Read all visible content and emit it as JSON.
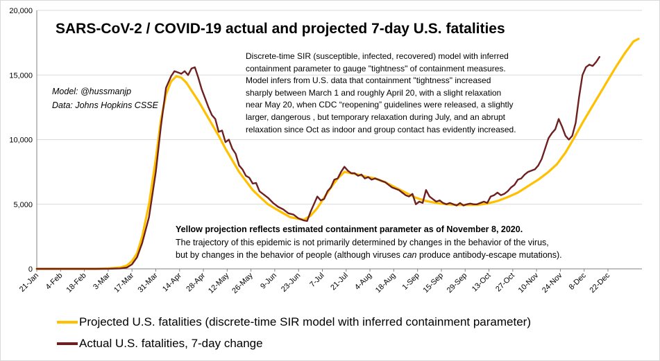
{
  "colors": {
    "projected": "#ffc000",
    "actual": "#6e2020",
    "gridline": "#d9d9d9"
  },
  "texts": {
    "title": "SARS-CoV-2  / COVID-19 actual and projected 7-day U.S. fatalities",
    "author_line1": "Model: @hussmanjp",
    "author_line2": "Data: Johns Hopkins CSSE",
    "model_description": [
      "Discrete-time SIR (susceptible, infected, recovered) model with inferred",
      "containment parameter to gauge \"tightness\" of containment measures.",
      "Model infers from U.S. data that containment  \"tightness\" increased",
      "sharply between March 1 and roughly April 20, with a slight relaxation",
      "near May 20, when CDC “reopening” guidelines were released, a slightly",
      "larger, dangerous , but temporary relaxation during July, and an abrupt",
      "relaxation since Oct as indoor and group contact has evidently increased."
    ],
    "projection_note": "Yellow  projection reflects estimated containment parameter as of November 8, 2020.",
    "trajectory_line1": "The trajectory of this epidemic is not primarily determined by changes in the behavior of the virus,",
    "trajectory_line2_a": "but by changes in the behavior of people (although viruses ",
    "trajectory_line2_em": "can",
    "trajectory_line2_b": " produce  antibody-escape mutations)."
  },
  "chart_data": {
    "type": "line",
    "title": "SARS-CoV-2  / COVID-19 actual and projected 7-day U.S. fatalities",
    "xlabel": "",
    "ylabel": "",
    "x_ticks": [
      "21-Jan",
      "4-Feb",
      "18-Feb",
      "3-Mar",
      "17-Mar",
      "31-Mar",
      "14-Apr",
      "28-Apr",
      "12-May",
      "26-May",
      "9-Jun",
      "23-Jun",
      "7-Jul",
      "21-Jul",
      "4-Aug",
      "18-Aug",
      "1-Sep",
      "15-Sep",
      "29-Sep",
      "13-Oct",
      "27-Oct",
      "10-Nov",
      "24-Nov",
      "8-Dec",
      "22-Dec"
    ],
    "y_ticks": [
      "0",
      "5,000",
      "10,000",
      "15,000",
      "20,000"
    ],
    "ylim": [
      0,
      20000
    ],
    "x_unit": "days since 21-Jan",
    "xlim": [
      0,
      356
    ],
    "grid": "horizontal",
    "legend_position": "bottom",
    "series": [
      {
        "name": "Projected U.S. fatalities (discrete-time SIR model with inferred containment parameter)",
        "color": "#ffc000",
        "points": [
          [
            0,
            0
          ],
          [
            35,
            0
          ],
          [
            42,
            30
          ],
          [
            49,
            100
          ],
          [
            53,
            250
          ],
          [
            56,
            600
          ],
          [
            59,
            1200
          ],
          [
            62,
            2500
          ],
          [
            66,
            5000
          ],
          [
            70,
            8500
          ],
          [
            73,
            11500
          ],
          [
            76,
            13500
          ],
          [
            79,
            14500
          ],
          [
            82,
            14900
          ],
          [
            85,
            14800
          ],
          [
            88,
            14400
          ],
          [
            91,
            13800
          ],
          [
            95,
            13000
          ],
          [
            99,
            12100
          ],
          [
            103,
            11200
          ],
          [
            107,
            10300
          ],
          [
            111,
            9300
          ],
          [
            115,
            8400
          ],
          [
            119,
            7500
          ],
          [
            123,
            6800
          ],
          [
            127,
            6100
          ],
          [
            131,
            5600
          ],
          [
            136,
            5000
          ],
          [
            141,
            4600
          ],
          [
            145,
            4300
          ],
          [
            149,
            4000
          ],
          [
            153,
            3900
          ],
          [
            157,
            3800
          ],
          [
            161,
            4100
          ],
          [
            165,
            4700
          ],
          [
            169,
            5500
          ],
          [
            173,
            6300
          ],
          [
            177,
            7000
          ],
          [
            181,
            7500
          ],
          [
            185,
            7400
          ],
          [
            189,
            7300
          ],
          [
            193,
            7150
          ],
          [
            199,
            7000
          ],
          [
            205,
            6700
          ],
          [
            211,
            6300
          ],
          [
            217,
            5900
          ],
          [
            223,
            5500
          ],
          [
            229,
            5250
          ],
          [
            235,
            5100
          ],
          [
            241,
            5000
          ],
          [
            247,
            4950
          ],
          [
            253,
            4950
          ],
          [
            259,
            4950
          ],
          [
            265,
            5050
          ],
          [
            271,
            5250
          ],
          [
            277,
            5550
          ],
          [
            283,
            5900
          ],
          [
            289,
            6400
          ],
          [
            295,
            6900
          ],
          [
            301,
            7500
          ],
          [
            306,
            8100
          ],
          [
            311,
            9000
          ],
          [
            316,
            10100
          ],
          [
            321,
            11300
          ],
          [
            326,
            12400
          ],
          [
            331,
            13500
          ],
          [
            336,
            14600
          ],
          [
            341,
            15700
          ],
          [
            346,
            16700
          ],
          [
            351,
            17600
          ],
          [
            354,
            17800
          ]
        ]
      },
      {
        "name": "Actual U.S. fatalities, 7-day change",
        "color": "#6e2020",
        "points": [
          [
            0,
            0
          ],
          [
            35,
            0
          ],
          [
            42,
            5
          ],
          [
            49,
            30
          ],
          [
            53,
            100
          ],
          [
            56,
            350
          ],
          [
            59,
            900
          ],
          [
            62,
            2000
          ],
          [
            66,
            4000
          ],
          [
            70,
            7500
          ],
          [
            73,
            11000
          ],
          [
            76,
            14000
          ],
          [
            79,
            14900
          ],
          [
            81,
            15300
          ],
          [
            83,
            15200
          ],
          [
            85,
            15100
          ],
          [
            87,
            15300
          ],
          [
            89,
            15000
          ],
          [
            91,
            15500
          ],
          [
            93,
            15600
          ],
          [
            95,
            14800
          ],
          [
            97,
            13900
          ],
          [
            99,
            13200
          ],
          [
            101,
            12500
          ],
          [
            103,
            11900
          ],
          [
            105,
            11600
          ],
          [
            107,
            10600
          ],
          [
            109,
            10700
          ],
          [
            111,
            9800
          ],
          [
            113,
            10000
          ],
          [
            115,
            9300
          ],
          [
            117,
            8900
          ],
          [
            119,
            8000
          ],
          [
            121,
            7700
          ],
          [
            123,
            7200
          ],
          [
            125,
            7050
          ],
          [
            127,
            6600
          ],
          [
            129,
            6650
          ],
          [
            131,
            6000
          ],
          [
            133,
            5800
          ],
          [
            136,
            5500
          ],
          [
            139,
            5100
          ],
          [
            142,
            4800
          ],
          [
            145,
            4600
          ],
          [
            148,
            4300
          ],
          [
            151,
            4200
          ],
          [
            154,
            3900
          ],
          [
            157,
            3750
          ],
          [
            159,
            3700
          ],
          [
            161,
            4400
          ],
          [
            163,
            5000
          ],
          [
            165,
            5600
          ],
          [
            167,
            5300
          ],
          [
            169,
            5400
          ],
          [
            171,
            6000
          ],
          [
            173,
            6300
          ],
          [
            175,
            6900
          ],
          [
            177,
            7000
          ],
          [
            179,
            7500
          ],
          [
            181,
            7900
          ],
          [
            183,
            7600
          ],
          [
            185,
            7400
          ],
          [
            187,
            7400
          ],
          [
            189,
            7200
          ],
          [
            191,
            7300
          ],
          [
            193,
            7000
          ],
          [
            195,
            7100
          ],
          [
            197,
            6900
          ],
          [
            199,
            7000
          ],
          [
            201,
            6900
          ],
          [
            203,
            6800
          ],
          [
            205,
            6700
          ],
          [
            207,
            6500
          ],
          [
            209,
            6300
          ],
          [
            211,
            6200
          ],
          [
            213,
            6100
          ],
          [
            215,
            5900
          ],
          [
            217,
            5700
          ],
          [
            219,
            5600
          ],
          [
            221,
            5800
          ],
          [
            223,
            5000
          ],
          [
            225,
            5200
          ],
          [
            227,
            5100
          ],
          [
            229,
            6100
          ],
          [
            231,
            5600
          ],
          [
            233,
            5400
          ],
          [
            235,
            5200
          ],
          [
            237,
            5300
          ],
          [
            239,
            5100
          ],
          [
            241,
            5000
          ],
          [
            243,
            5100
          ],
          [
            245,
            5000
          ],
          [
            247,
            4900
          ],
          [
            249,
            5100
          ],
          [
            251,
            4900
          ],
          [
            253,
            5000
          ],
          [
            255,
            5050
          ],
          [
            257,
            5000
          ],
          [
            259,
            5000
          ],
          [
            261,
            5100
          ],
          [
            263,
            5200
          ],
          [
            265,
            5100
          ],
          [
            267,
            5600
          ],
          [
            269,
            5700
          ],
          [
            271,
            5900
          ],
          [
            273,
            5700
          ],
          [
            275,
            5800
          ],
          [
            277,
            6000
          ],
          [
            279,
            6300
          ],
          [
            281,
            6500
          ],
          [
            283,
            6900
          ],
          [
            285,
            7000
          ],
          [
            287,
            7300
          ],
          [
            289,
            7500
          ],
          [
            291,
            7600
          ],
          [
            293,
            7700
          ],
          [
            295,
            8000
          ],
          [
            297,
            8500
          ],
          [
            299,
            9300
          ],
          [
            301,
            10100
          ],
          [
            303,
            10500
          ],
          [
            305,
            10800
          ],
          [
            307,
            11600
          ],
          [
            309,
            11000
          ],
          [
            311,
            10300
          ],
          [
            313,
            10000
          ],
          [
            315,
            10300
          ],
          [
            317,
            11300
          ],
          [
            319,
            13300
          ],
          [
            321,
            15000
          ],
          [
            323,
            15600
          ],
          [
            325,
            15800
          ],
          [
            327,
            15700
          ],
          [
            329,
            16000
          ],
          [
            331,
            16400
          ]
        ]
      }
    ]
  }
}
